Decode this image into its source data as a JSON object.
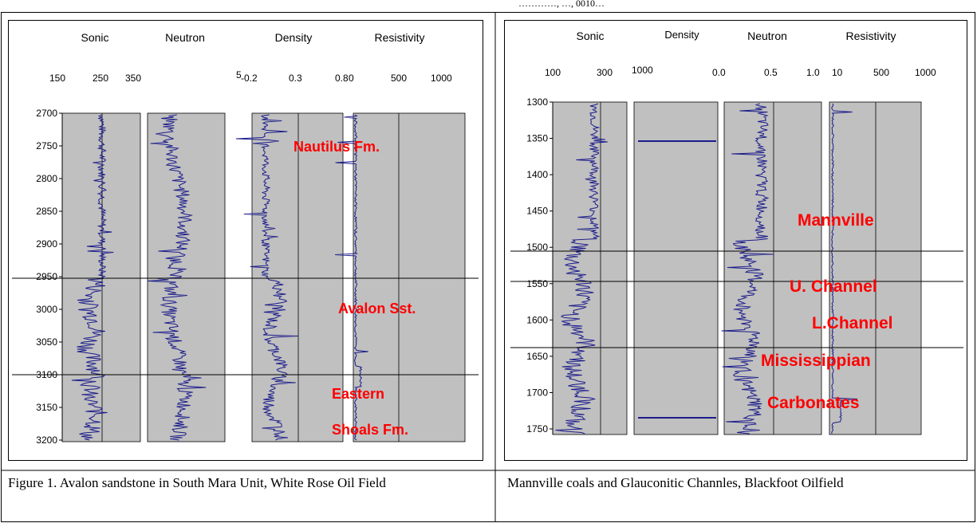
{
  "top_fragment": "…………, …, 0010…",
  "left_figure": {
    "tracks": [
      "Sonic",
      "Neutron",
      "Density",
      "Resistivity"
    ],
    "scale_labels": [
      "150",
      "250",
      "350",
      "5",
      "-0.2",
      "0.3",
      "0.8",
      "0",
      "500",
      "1000"
    ],
    "depth_labels": [
      "2700",
      "2750",
      "2800",
      "2850",
      "2900",
      "2950",
      "3000",
      "3050",
      "3100",
      "3150",
      "3200"
    ],
    "annotations": [
      "Nautilus Fm.",
      "Avalon Sst.",
      "Eastern",
      "Shoals Fm."
    ],
    "caption": "Figure 1. Avalon sandstone in South Mara Unit, White Rose Oil Field"
  },
  "right_figure": {
    "tracks": [
      "Sonic",
      "Density",
      "Neutron",
      "Resistivity"
    ],
    "scale_labels": [
      "100",
      "300",
      "1000",
      "0.0",
      "0.5",
      "1.0",
      "10",
      "500",
      "1000"
    ],
    "depth_labels": [
      "1300",
      "1350",
      "1400",
      "1450",
      "1500",
      "1550",
      "1600",
      "1650",
      "1700",
      "1750"
    ],
    "annotations": [
      "Mannville",
      "U. Channel",
      "L.Channel",
      "Mississippian",
      "Carbonates"
    ],
    "caption": "Mannville coals and Glauconitic Channles, Blackfoot Oilfield"
  },
  "colors": {
    "track_fill": "#c0c0c0",
    "log_curve": "#1c1c8c",
    "annotation": "#ff0000",
    "frame": "#000000"
  }
}
